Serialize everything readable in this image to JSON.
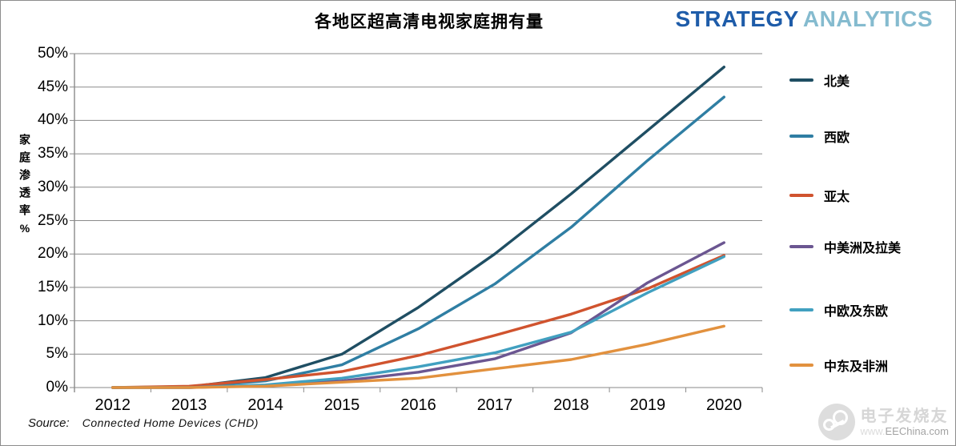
{
  "page": {
    "title": "各地区超高清电视家庭拥有量",
    "logo": {
      "part1": "STRATEGY",
      "part2": "ANALYTICS"
    },
    "source_label": "Source:",
    "source_text": "Connected Home Devices (CHD)",
    "watermark": {
      "line1": "电子发烧友",
      "prefix": "www.",
      "line2": "EEChina.com"
    }
  },
  "chart_data": {
    "type": "line",
    "title": "各地区超高清电视家庭拥有量",
    "xlabel": "",
    "ylabel": "家庭渗透率%",
    "x": [
      2012,
      2013,
      2014,
      2015,
      2016,
      2017,
      2018,
      2019,
      2020
    ],
    "y_ticks": [
      "0%",
      "5%",
      "10%",
      "15%",
      "20%",
      "25%",
      "30%",
      "35%",
      "40%",
      "45%",
      "50%"
    ],
    "ylim": [
      0,
      50
    ],
    "grid": true,
    "legend_position": "right",
    "series": [
      {
        "name": "北美",
        "color": "#1f4e63",
        "values": [
          0,
          0.1,
          1.5,
          5.0,
          12.0,
          20.0,
          29.0,
          38.5,
          48.0
        ]
      },
      {
        "name": "西欧",
        "color": "#2f7ea3",
        "values": [
          0,
          0.1,
          1.0,
          3.4,
          8.8,
          15.5,
          24.0,
          34.0,
          43.5
        ]
      },
      {
        "name": "亚太",
        "color": "#d0532e",
        "values": [
          0,
          0.2,
          1.2,
          2.4,
          4.8,
          7.8,
          11.0,
          14.8,
          19.8
        ]
      },
      {
        "name": "中美洲及拉美",
        "color": "#6b5691",
        "values": [
          0,
          0.0,
          0.3,
          1.0,
          2.3,
          4.3,
          8.2,
          15.7,
          21.7
        ]
      },
      {
        "name": "中欧及东欧",
        "color": "#41a0c0",
        "values": [
          0,
          0.0,
          0.4,
          1.4,
          3.1,
          5.2,
          8.3,
          14.2,
          19.6
        ]
      },
      {
        "name": "中东及非洲",
        "color": "#e2913e",
        "values": [
          0,
          0.0,
          0.2,
          0.8,
          1.4,
          2.8,
          4.2,
          6.5,
          9.2
        ]
      }
    ]
  }
}
